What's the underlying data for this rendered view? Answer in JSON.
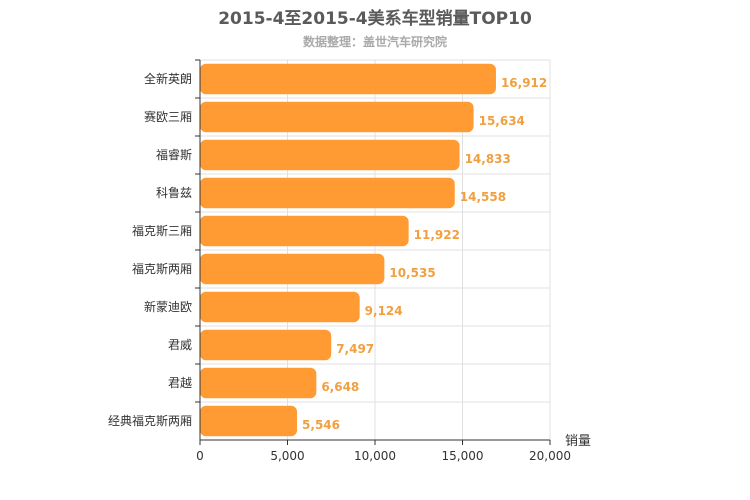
{
  "chart_data": {
    "type": "bar",
    "orientation": "horizontal",
    "title": "2015-4至2015-4美系车型销量TOP10",
    "subtitle": "数据整理：盖世汽车研究院",
    "xlabel": "销量",
    "ylabel": "",
    "xlim": [
      0,
      20000
    ],
    "xticks": [
      "0",
      "5,000",
      "10,000",
      "15,000",
      "20,000"
    ],
    "categories": [
      "全新英朗",
      "赛欧三厢",
      "福睿斯",
      "科鲁兹",
      "福克斯三厢",
      "福克斯两厢",
      "新蒙迪欧",
      "君威",
      "君越",
      "经典福克斯两厢"
    ],
    "values": [
      16912,
      15634,
      14833,
      14558,
      11922,
      10535,
      9124,
      7497,
      6648,
      5546
    ],
    "value_labels": [
      "16,912",
      "15,634",
      "14,833",
      "14,558",
      "11,922",
      "10,535",
      "9,124",
      "7,497",
      "6,648",
      "5,546"
    ],
    "bar_color": "#ff9b32",
    "grid": true
  }
}
